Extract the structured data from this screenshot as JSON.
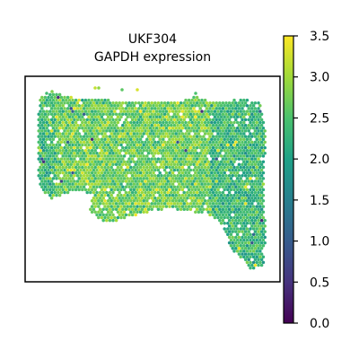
{
  "chart_data": {
    "type": "scatter",
    "title": "UKF304",
    "subtitle": "GAPDH expression",
    "xlabel": "",
    "ylabel": "",
    "grid": false,
    "colormap": "viridis",
    "colorbar": {
      "range": [
        0,
        3.5
      ],
      "ticks": [
        0.0,
        0.5,
        1.0,
        1.5,
        2.0,
        2.5,
        3.0,
        3.5
      ],
      "tick_labels": [
        "0.0",
        "0.5",
        "1.0",
        "1.5",
        "2.0",
        "2.5",
        "3.0",
        "3.5"
      ]
    },
    "colors": {
      "viridis": [
        "#440154",
        "#46337e",
        "#365c8d",
        "#277f8e",
        "#1fa187",
        "#4ac16d",
        "#a0da39",
        "#fde725"
      ]
    },
    "value_distribution": {
      "typical_range": [
        2.0,
        3.2
      ],
      "dominant_value": 2.7,
      "sparse_low_values": [
        0.3,
        1.0
      ]
    }
  }
}
